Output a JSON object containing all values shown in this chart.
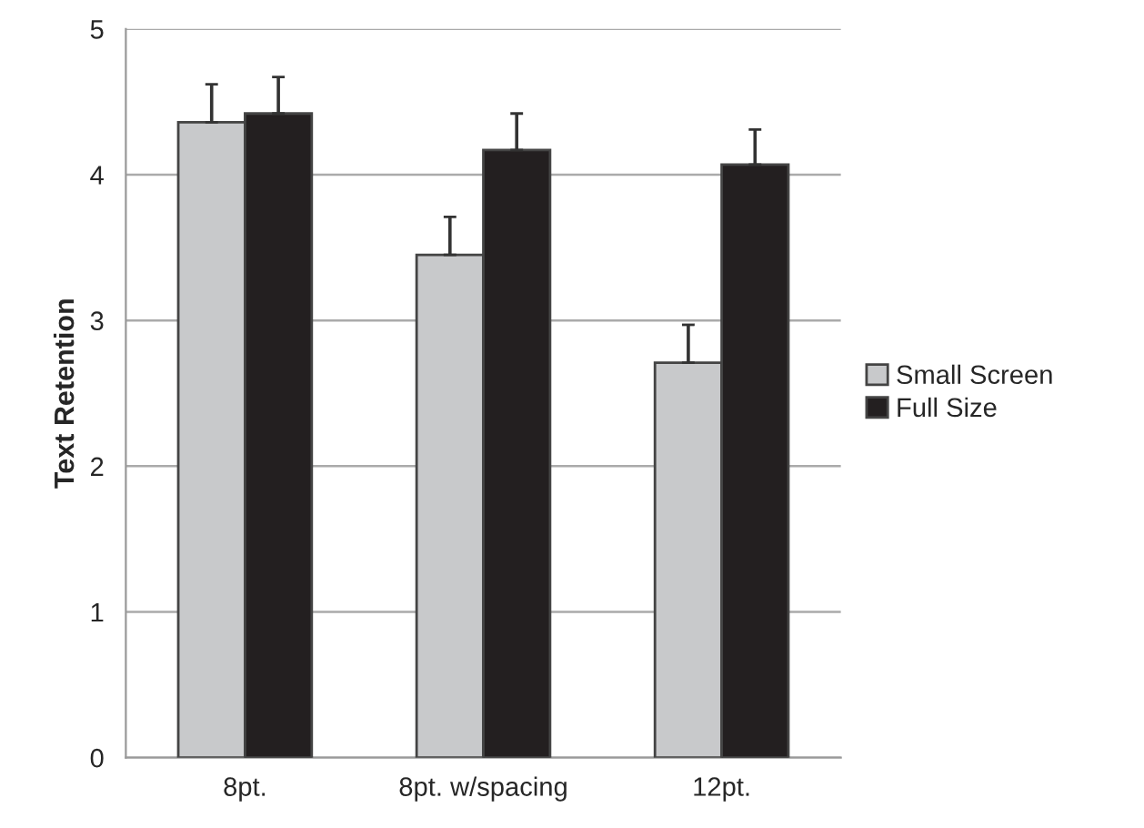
{
  "chart_data": {
    "type": "bar",
    "ylabel": "Text Retention",
    "categories": [
      "8pt.",
      "8pt. w/spacing",
      "12pt."
    ],
    "series": [
      {
        "name": "Small Screen",
        "color": "#c8c9cb",
        "values": [
          4.36,
          3.45,
          2.71
        ],
        "errors": [
          [
            4.36,
            4.62
          ],
          [
            3.45,
            3.71
          ],
          [
            2.71,
            2.97
          ]
        ]
      },
      {
        "name": "Full Size",
        "color": "#231f20",
        "values": [
          4.42,
          4.17,
          4.07
        ],
        "errors": [
          [
            4.42,
            4.67
          ],
          [
            4.17,
            4.42
          ],
          [
            4.07,
            4.31
          ]
        ]
      }
    ],
    "ylim": [
      0,
      5
    ],
    "yticks": [
      0,
      1,
      2,
      3,
      4,
      5
    ],
    "grid": "y",
    "legend": "right"
  }
}
